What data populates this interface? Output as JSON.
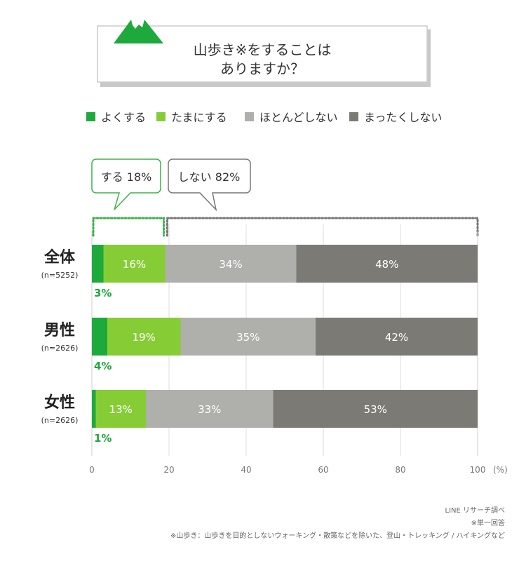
{
  "title_lines": [
    "山歩き※をすることは",
    "ありますか？"
  ],
  "colors": {
    "often": "#1ea93c",
    "sometimes": "#86cd35",
    "rarely": "#afafab",
    "never": "#7b7a74",
    "do_outline": "#3db14a",
    "dont_outline": "#777777",
    "mountain": "#1ea93c"
  },
  "chart_data": {
    "type": "bar",
    "orientation": "horizontal",
    "stacked": true,
    "categories": [
      "全体",
      "男性",
      "女性"
    ],
    "category_notes": [
      "(n=5252)",
      "(n=2626)",
      "(n=2626)"
    ],
    "series": [
      {
        "name": "よくする",
        "values": [
          3,
          4,
          1
        ]
      },
      {
        "name": "たまにする",
        "values": [
          16,
          19,
          13
        ]
      },
      {
        "name": "ほとんどしない",
        "values": [
          34,
          35,
          33
        ]
      },
      {
        "name": "まったくしない",
        "values": [
          48,
          42,
          53
        ]
      }
    ],
    "value_suffix": "%",
    "xlim": [
      0,
      100
    ],
    "xticks": [
      "0",
      "20",
      "40",
      "60",
      "80",
      "100"
    ],
    "xunit": "(%)",
    "grid": true,
    "legend_position": "top"
  },
  "callouts": {
    "do": "する 18%",
    "dont": "しない 82%"
  },
  "footnotes": [
    "LINE リサーチ調べ",
    "※単一回答",
    "※山歩き：山歩きを目的としないウォーキング・散策などを除いた、登山・トレッキング / ハイキングなど"
  ]
}
